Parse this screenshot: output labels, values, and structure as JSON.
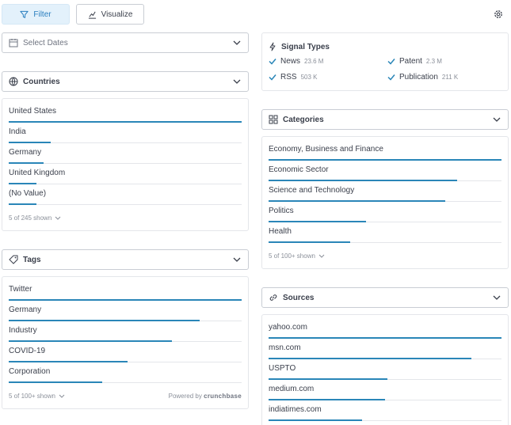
{
  "toolbar": {
    "filter_label": "Filter",
    "visualize_label": "Visualize",
    "settings_icon": "gear-icon"
  },
  "dates": {
    "placeholder": "Select Dates"
  },
  "countries": {
    "title": "Countries",
    "items": [
      {
        "label": "United States",
        "fraction": 1.0
      },
      {
        "label": "India",
        "fraction": 0.18
      },
      {
        "label": "Germany",
        "fraction": 0.15
      },
      {
        "label": "United Kingdom",
        "fraction": 0.12
      },
      {
        "label": "(No Value)",
        "fraction": 0.12
      }
    ],
    "shown": "5 of 245 shown"
  },
  "tags": {
    "title": "Tags",
    "items": [
      {
        "label": "Twitter",
        "fraction": 1.0
      },
      {
        "label": "Germany",
        "fraction": 0.82
      },
      {
        "label": "Industry",
        "fraction": 0.7
      },
      {
        "label": "COVID-19",
        "fraction": 0.51
      },
      {
        "label": "Corporation",
        "fraction": 0.4
      }
    ],
    "shown": "5 of 100+ shown",
    "powered_prefix": "Powered by",
    "powered_brand": "crunchbase"
  },
  "signal_types": {
    "title": "Signal Types",
    "items": [
      {
        "label": "News",
        "count": "23.6 M",
        "checked": true
      },
      {
        "label": "Patent",
        "count": "2.3 M",
        "checked": true
      },
      {
        "label": "RSS",
        "count": "503 K",
        "checked": true
      },
      {
        "label": "Publication",
        "count": "211 K",
        "checked": true
      }
    ]
  },
  "categories": {
    "title": "Categories",
    "items": [
      {
        "label": "Economy, Business and Finance",
        "fraction": 1.0
      },
      {
        "label": "Economic Sector",
        "fraction": 0.81
      },
      {
        "label": "Science and Technology",
        "fraction": 0.76
      },
      {
        "label": "Politics",
        "fraction": 0.42
      },
      {
        "label": "Health",
        "fraction": 0.35
      }
    ],
    "shown": "5 of 100+ shown"
  },
  "sources": {
    "title": "Sources",
    "items": [
      {
        "label": "yahoo.com",
        "fraction": 1.0
      },
      {
        "label": "msn.com",
        "fraction": 0.87
      },
      {
        "label": "USPTO",
        "fraction": 0.51
      },
      {
        "label": "medium.com",
        "fraction": 0.5
      },
      {
        "label": "indiatimes.com",
        "fraction": 0.4
      }
    ]
  },
  "colors": {
    "accent": "#2a86b8",
    "check": "#2a86b8",
    "active_tab_bg": "#e3f1fb"
  }
}
